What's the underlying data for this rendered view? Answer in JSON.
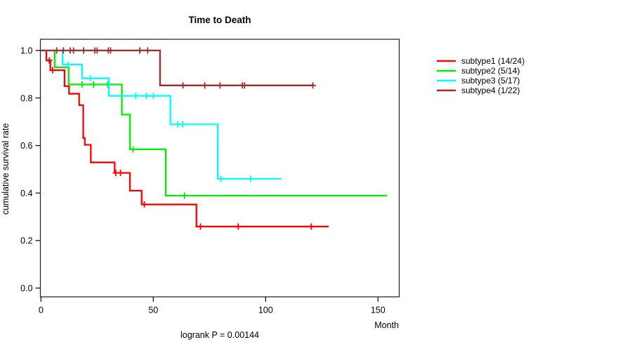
{
  "title": "Time to Death",
  "annotation": "logrank P = 0.00144",
  "axes": {
    "xlabel": "Month",
    "ylabel": "cumulative survival rate",
    "x_ticks": [
      0,
      50,
      100,
      150
    ],
    "y_ticks": [
      0.0,
      0.2,
      0.4,
      0.6,
      0.8,
      1.0
    ],
    "xlim": [
      0,
      160
    ],
    "ylim": [
      0.0,
      1.0
    ]
  },
  "chart_data": {
    "type": "line",
    "variant": "kaplan-meier-step",
    "title": "Time to Death",
    "xlabel": "Month",
    "ylabel": "cumulative survival rate",
    "x_ticks": [
      0,
      50,
      100,
      150
    ],
    "y_ticks": [
      0.0,
      0.2,
      0.4,
      0.6,
      0.8,
      1.0
    ],
    "xlim": [
      0,
      160
    ],
    "ylim": [
      0.0,
      1.0
    ],
    "grid": false,
    "legend_position": "right-outside",
    "annotation": "logrank P = 0.00144",
    "series": [
      {
        "name": "subtype1 (14/24)",
        "color": "#FF0000",
        "points": [
          [
            0,
            1.0
          ],
          [
            2.4,
            1.0
          ],
          [
            2.4,
            0.958
          ],
          [
            4.2,
            0.958
          ],
          [
            4.2,
            0.917
          ],
          [
            10.5,
            0.917
          ],
          [
            10.5,
            0.85
          ],
          [
            12.5,
            0.85
          ],
          [
            12.5,
            0.818
          ],
          [
            17,
            0.818
          ],
          [
            17,
            0.77
          ],
          [
            18.8,
            0.77
          ],
          [
            18.8,
            0.632
          ],
          [
            19.5,
            0.632
          ],
          [
            19.5,
            0.603
          ],
          [
            22.2,
            0.603
          ],
          [
            22.2,
            0.529
          ],
          [
            32.8,
            0.529
          ],
          [
            32.8,
            0.485
          ],
          [
            39.6,
            0.485
          ],
          [
            39.6,
            0.41
          ],
          [
            44.8,
            0.41
          ],
          [
            44.8,
            0.352
          ],
          [
            69.2,
            0.352
          ],
          [
            69.2,
            0.259
          ],
          [
            128,
            0.259
          ]
        ],
        "censors": [
          [
            3.7,
            0.958
          ],
          [
            5.2,
            0.917
          ],
          [
            33.3,
            0.485
          ],
          [
            35.4,
            0.485
          ],
          [
            46,
            0.352
          ],
          [
            71,
            0.259
          ],
          [
            87.8,
            0.259
          ],
          [
            120.3,
            0.259
          ]
        ]
      },
      {
        "name": "subtype2 (5/14)",
        "color": "#00EE00",
        "points": [
          [
            0,
            1.0
          ],
          [
            6.1,
            1.0
          ],
          [
            6.1,
            0.929
          ],
          [
            12.3,
            0.929
          ],
          [
            12.3,
            0.857
          ],
          [
            36,
            0.857
          ],
          [
            36,
            0.73
          ],
          [
            39.6,
            0.73
          ],
          [
            39.6,
            0.584
          ],
          [
            55.5,
            0.584
          ],
          [
            55.5,
            0.389
          ],
          [
            154,
            0.389
          ]
        ],
        "censors": [
          [
            18.3,
            0.857
          ],
          [
            23.4,
            0.857
          ],
          [
            29.7,
            0.857
          ],
          [
            41,
            0.584
          ],
          [
            63.9,
            0.389
          ]
        ]
      },
      {
        "name": "subtype3 (5/17)",
        "color": "#00FFFF",
        "points": [
          [
            0,
            1.0
          ],
          [
            9.6,
            1.0
          ],
          [
            9.6,
            0.941
          ],
          [
            18.3,
            0.941
          ],
          [
            18.3,
            0.883
          ],
          [
            30.2,
            0.883
          ],
          [
            30.2,
            0.809
          ],
          [
            57.6,
            0.809
          ],
          [
            57.6,
            0.689
          ],
          [
            78.7,
            0.689
          ],
          [
            78.7,
            0.46
          ],
          [
            107,
            0.46
          ]
        ],
        "censors": [
          [
            12,
            0.941
          ],
          [
            21.9,
            0.883
          ],
          [
            42.2,
            0.809
          ],
          [
            46.9,
            0.809
          ],
          [
            50,
            0.809
          ],
          [
            60.9,
            0.689
          ],
          [
            63,
            0.689
          ],
          [
            80,
            0.46
          ],
          [
            93.3,
            0.46
          ]
        ]
      },
      {
        "name": "subtype4 (1/22)",
        "color": "#A52A2A",
        "points": [
          [
            0,
            1.0
          ],
          [
            53,
            1.0
          ],
          [
            53,
            0.853
          ],
          [
            121.4,
            0.853
          ]
        ],
        "censors": [
          [
            7,
            1.0
          ],
          [
            10,
            1.0
          ],
          [
            13,
            1.0
          ],
          [
            14.5,
            1.0
          ],
          [
            19,
            1.0
          ],
          [
            24,
            1.0
          ],
          [
            25,
            1.0
          ],
          [
            30,
            1.0
          ],
          [
            31,
            1.0
          ],
          [
            44,
            1.0
          ],
          [
            47.5,
            1.0
          ],
          [
            63.2,
            0.853
          ],
          [
            72.9,
            0.853
          ],
          [
            79.7,
            0.853
          ],
          [
            89.6,
            0.853
          ],
          [
            90.6,
            0.853
          ],
          [
            121,
            0.853
          ]
        ]
      }
    ]
  },
  "legend": {
    "items": [
      {
        "label": "subtype1 (14/24)",
        "color": "#FF0000"
      },
      {
        "label": "subtype2 (5/14)",
        "color": "#00EE00"
      },
      {
        "label": "subtype3 (5/17)",
        "color": "#00FFFF"
      },
      {
        "label": "subtype4 (1/22)",
        "color": "#A52A2A"
      }
    ]
  }
}
